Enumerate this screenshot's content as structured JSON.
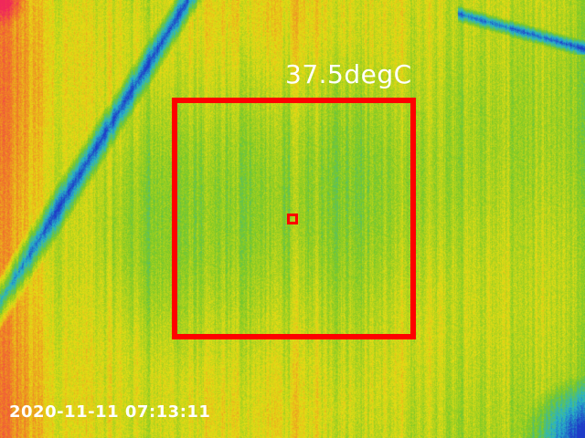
{
  "overlay": {
    "temperature_reading": "37.5degC",
    "timestamp": "2020-11-11 07:13:11",
    "marker_color": "#ff0000",
    "text_color": "#ffffff"
  },
  "palette": {
    "cold": "#1e3cc8",
    "cool": "#28b4c8",
    "mild": "#78c828",
    "warm": "#e6dc14",
    "hot": "#f07828",
    "hottest": "#f0285a"
  }
}
